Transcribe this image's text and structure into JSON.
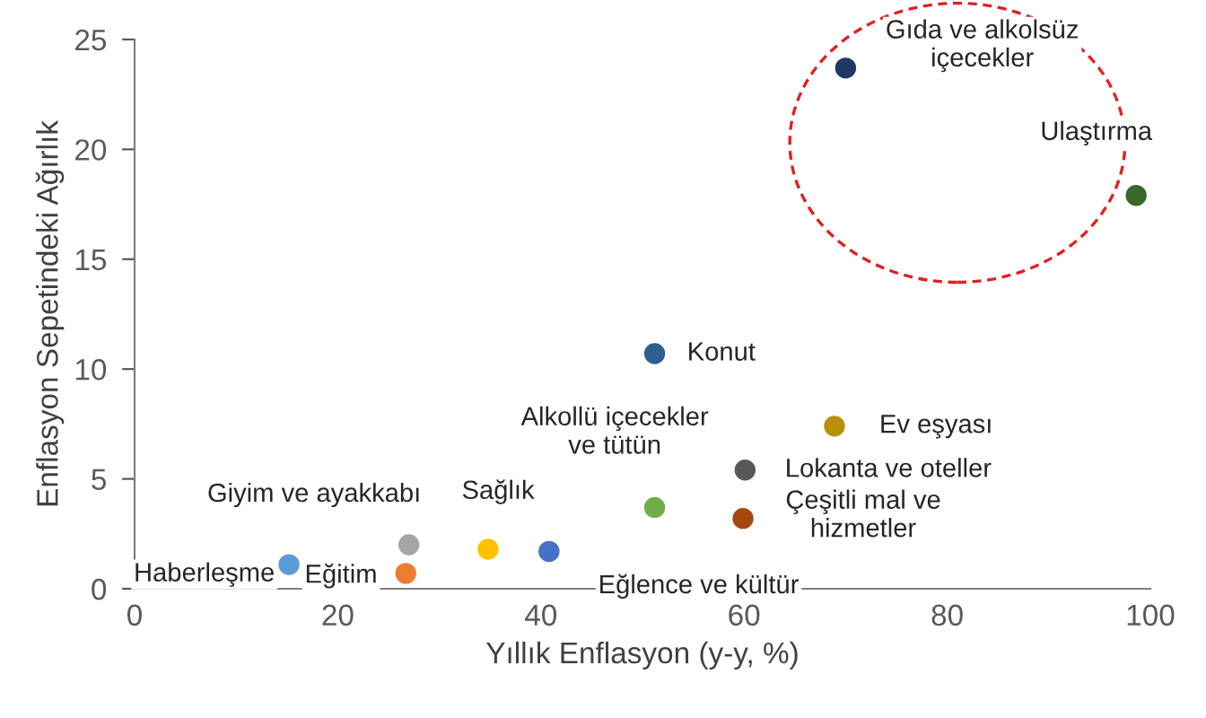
{
  "chart_data": {
    "type": "scatter",
    "xlabel": "Yıllık Enflasyon (y-y, %)",
    "ylabel": "Enflasyon Sepetindeki Ağırlık",
    "x": [
      70.0,
      98.6,
      51.2,
      68.9,
      60.1,
      51.2,
      59.9,
      27.0,
      34.8,
      40.8,
      15.2,
      26.7
    ],
    "values": [
      23.7,
      17.9,
      10.7,
      7.4,
      5.4,
      3.7,
      3.2,
      2.0,
      1.8,
      1.7,
      1.1,
      0.7
    ],
    "colors": [
      "#203864",
      "#38682a",
      "#2e5f8f",
      "#b8900a",
      "#595959",
      "#70ad47",
      "#a5480e",
      "#a5a5a5",
      "#ffc000",
      "#4472c4",
      "#5b9bd5",
      "#ed7d31"
    ],
    "annotations": [
      {
        "text": "Gıda ve alkolsüz\niçecekler",
        "x": 70.0,
        "y": 23.7
      },
      {
        "text": "Ulaştırma",
        "x": 98.6,
        "y": 17.9
      },
      {
        "text": "Konut",
        "x": 51.2,
        "y": 10.7
      },
      {
        "text": "Ev eşyası",
        "x": 68.9,
        "y": 7.4
      },
      {
        "text": "Lokanta ve oteller",
        "x": 60.1,
        "y": 5.4
      },
      {
        "text": "Alkollü içecekler\nve tütün",
        "x": 51.2,
        "y": 3.7
      },
      {
        "text": "Çeşitli mal ve\nhizmetler",
        "x": 59.9,
        "y": 3.2
      },
      {
        "text": "Giyim ve ayakkabı",
        "x": 27.0,
        "y": 2.0
      },
      {
        "text": "Sağlık",
        "x": 34.8,
        "y": 1.8
      },
      {
        "text": "Eğlence ve kültür",
        "x": 40.8,
        "y": 1.7
      },
      {
        "text": "Haberleşme",
        "x": 15.2,
        "y": 1.1
      },
      {
        "text": "Eğitim",
        "x": 26.7,
        "y": 0.7
      }
    ],
    "xlim": [
      0,
      100
    ],
    "xticks": [
      0,
      20,
      40,
      60,
      80,
      100
    ],
    "ylim": [
      0,
      25
    ],
    "yticks": [
      0,
      5,
      10,
      15,
      20,
      25
    ],
    "grid": false,
    "marker": "circle"
  }
}
